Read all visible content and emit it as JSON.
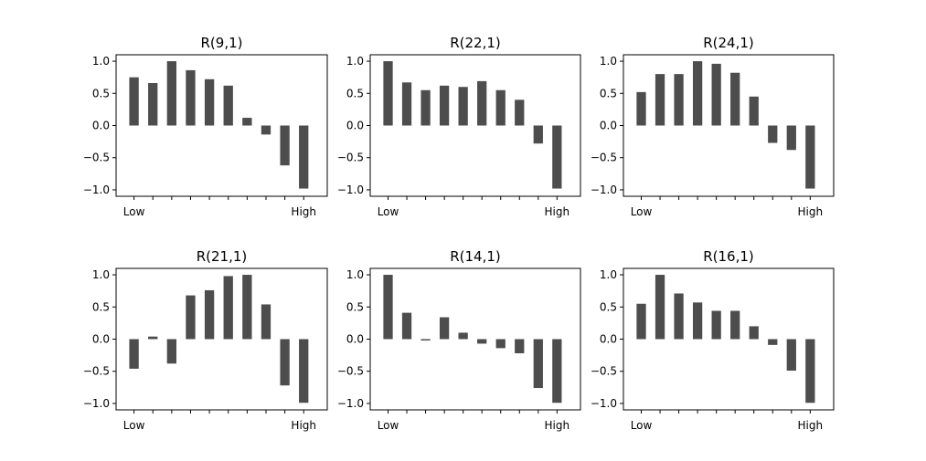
{
  "chart_data": [
    {
      "type": "bar",
      "title": "R(9,1)",
      "xticklabels": [
        "Low",
        "High"
      ],
      "yticks": [
        "1.0",
        "0.5",
        "0.0",
        "−0.5",
        "−1.0"
      ],
      "ylim": [
        -1.1,
        1.1
      ],
      "bar_color": "#4d4d4d",
      "values": [
        0.75,
        0.66,
        1.0,
        0.86,
        0.72,
        0.62,
        0.12,
        -0.14,
        -0.62,
        -0.98
      ]
    },
    {
      "type": "bar",
      "title": "R(22,1)",
      "xticklabels": [
        "Low",
        "High"
      ],
      "yticks": [
        "1.0",
        "0.5",
        "0.0",
        "−0.5",
        "−1.0"
      ],
      "ylim": [
        -1.1,
        1.1
      ],
      "bar_color": "#4d4d4d",
      "values": [
        1.0,
        0.67,
        0.55,
        0.62,
        0.6,
        0.69,
        0.55,
        0.4,
        -0.28,
        -0.98
      ]
    },
    {
      "type": "bar",
      "title": "R(24,1)",
      "xticklabels": [
        "Low",
        "High"
      ],
      "yticks": [
        "1.0",
        "0.5",
        "0.0",
        "−0.5",
        "−1.0"
      ],
      "ylim": [
        -1.1,
        1.1
      ],
      "bar_color": "#4d4d4d",
      "values": [
        0.52,
        0.8,
        0.8,
        1.0,
        0.96,
        0.82,
        0.45,
        -0.27,
        -0.38,
        -0.98
      ]
    },
    {
      "type": "bar",
      "title": "R(21,1)",
      "xticklabels": [
        "Low",
        "High"
      ],
      "yticks": [
        "1.0",
        "0.5",
        "0.0",
        "−0.5",
        "−1.0"
      ],
      "ylim": [
        -1.1,
        1.1
      ],
      "bar_color": "#4d4d4d",
      "values": [
        -0.46,
        0.04,
        -0.38,
        0.68,
        0.76,
        0.98,
        1.0,
        0.54,
        -0.72,
        -0.99
      ]
    },
    {
      "type": "bar",
      "title": "R(14,1)",
      "xticklabels": [
        "Low",
        "High"
      ],
      "yticks": [
        "1.0",
        "0.5",
        "0.0",
        "−0.5",
        "−1.0"
      ],
      "ylim": [
        -1.1,
        1.1
      ],
      "bar_color": "#4d4d4d",
      "values": [
        1.0,
        0.41,
        -0.02,
        0.34,
        0.1,
        -0.07,
        -0.14,
        -0.22,
        -0.76,
        -0.99
      ]
    },
    {
      "type": "bar",
      "title": "R(16,1)",
      "xticklabels": [
        "Low",
        "High"
      ],
      "yticks": [
        "1.0",
        "0.5",
        "0.0",
        "−0.5",
        "−1.0"
      ],
      "ylim": [
        -1.1,
        1.1
      ],
      "bar_color": "#4d4d4d",
      "values": [
        0.55,
        1.0,
        0.71,
        0.57,
        0.44,
        0.44,
        0.2,
        -0.09,
        -0.49,
        -0.99
      ]
    }
  ]
}
